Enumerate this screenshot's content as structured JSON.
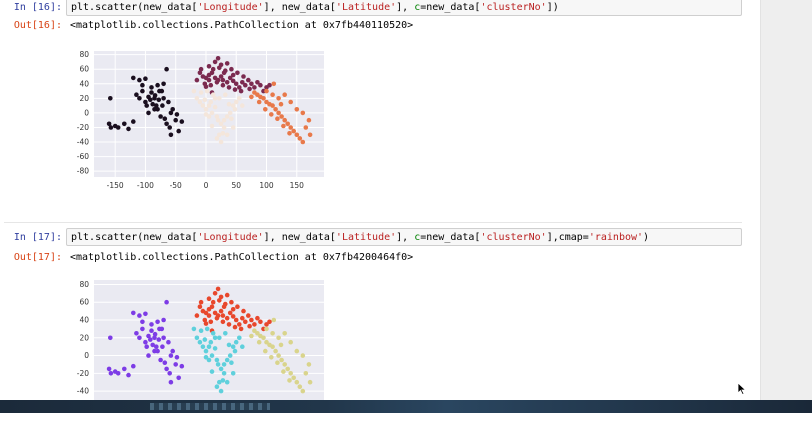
{
  "cells": [
    {
      "in_prompt": "In [16]:",
      "out_prompt": "Out[16]:",
      "code": {
        "p1": "plt.scatter(new_data[",
        "s1": "'Longitude'",
        "p2": "], new_data[",
        "s2": "'Latitude'",
        "p3": "], ",
        "kw": "c",
        "p4": "=new_data[",
        "s3": "'clusterNo'",
        "p5": "])"
      },
      "output_text": "<matplotlib.collections.PathCollection at 0x7fb440110520>"
    },
    {
      "in_prompt": "In [17]:",
      "out_prompt": "Out[17]:",
      "code": {
        "p1": "plt.scatter(new_data[",
        "s1": "'Longitude'",
        "p2": "], new_data[",
        "s2": "'Latitude'",
        "p3": "], ",
        "kw": "c",
        "p4": "=new_data[",
        "s3": "'clusterNo'",
        "p5": "],cmap=",
        "s4": "'rainbow'",
        "p6": ")"
      },
      "output_text": "<matplotlib.collections.PathCollection at 0x7fb4200464f0>"
    }
  ],
  "chart_data": [
    {
      "type": "scatter",
      "xlim": [
        -185,
        195
      ],
      "ylim": [
        -88,
        85
      ],
      "xticks": [
        -150,
        -100,
        -50,
        0,
        50,
        100,
        150
      ],
      "yticks": [
        80,
        60,
        40,
        20,
        0,
        -20,
        -40,
        -60,
        -80
      ],
      "grid": true,
      "background": "#eaeaf2",
      "colors": [
        "#1a0f1f",
        "#7b2a4f",
        "#f4e6db",
        "#e8794a"
      ]
    },
    {
      "type": "scatter",
      "xlim": [
        -185,
        195
      ],
      "ylim": [
        -50,
        85
      ],
      "xticks": [],
      "yticks": [
        80,
        60,
        40,
        20,
        0,
        -20,
        -40
      ],
      "grid": true,
      "background": "#eaeaf2",
      "cmap": "rainbow",
      "colors": [
        "#7d3ce6",
        "#e8472c",
        "#5fd0dc",
        "#d9d48c"
      ]
    }
  ],
  "clusters": [
    {
      "id": 0,
      "points": [
        [
          -160,
          -15
        ],
        [
          -157,
          -20
        ],
        [
          -150,
          -18
        ],
        [
          -145,
          -20
        ],
        [
          -135,
          -15
        ],
        [
          -128,
          -22
        ],
        [
          -120,
          -12
        ],
        [
          -115,
          25
        ],
        [
          -110,
          20
        ],
        [
          -105,
          30
        ],
        [
          -100,
          15
        ],
        [
          -98,
          10
        ],
        [
          -95,
          22
        ],
        [
          -92,
          18
        ],
        [
          -90,
          28
        ],
        [
          -88,
          12
        ],
        [
          -85,
          20
        ],
        [
          -84,
          24
        ],
        [
          -82,
          10
        ],
        [
          -80,
          5
        ],
        [
          -78,
          18
        ],
        [
          -77,
          30
        ],
        [
          -75,
          -5
        ],
        [
          -72,
          10
        ],
        [
          -70,
          20
        ],
        [
          -68,
          -8
        ],
        [
          -65,
          -15
        ],
        [
          -62,
          15
        ],
        [
          -60,
          -20
        ],
        [
          -58,
          0
        ],
        [
          -55,
          5
        ],
        [
          -50,
          -10
        ],
        [
          -48,
          -2
        ],
        [
          -45,
          -25
        ],
        [
          -100,
          47
        ],
        [
          -110,
          45
        ],
        [
          -105,
          38
        ],
        [
          -90,
          35
        ],
        [
          -70,
          40
        ],
        [
          -65,
          60
        ],
        [
          -73,
          30
        ],
        [
          -85,
          5
        ],
        [
          -58,
          -30
        ],
        [
          -40,
          -12
        ],
        [
          -158,
          20
        ],
        [
          -120,
          48
        ],
        [
          -80,
          38
        ],
        [
          -95,
          0
        ]
      ]
    },
    {
      "id": 1,
      "points": [
        [
          -5,
          50
        ],
        [
          0,
          48
        ],
        [
          5,
          52
        ],
        [
          10,
          55
        ],
        [
          15,
          48
        ],
        [
          20,
          45
        ],
        [
          25,
          50
        ],
        [
          30,
          55
        ],
        [
          35,
          42
        ],
        [
          40,
          48
        ],
        [
          45,
          52
        ],
        [
          50,
          40
        ],
        [
          55,
          35
        ],
        [
          60,
          42
        ],
        [
          65,
          38
        ],
        [
          70,
          45
        ],
        [
          75,
          40
        ],
        [
          80,
          35
        ],
        [
          85,
          42
        ],
        [
          90,
          38
        ],
        [
          95,
          30
        ],
        [
          100,
          35
        ],
        [
          105,
          38
        ],
        [
          -2,
          40
        ],
        [
          8,
          38
        ],
        [
          18,
          42
        ],
        [
          28,
          38
        ],
        [
          38,
          35
        ],
        [
          48,
          32
        ],
        [
          58,
          30
        ],
        [
          12,
          60
        ],
        [
          22,
          62
        ],
        [
          32,
          58
        ],
        [
          42,
          60
        ],
        [
          52,
          55
        ],
        [
          -10,
          55
        ],
        [
          -8,
          60
        ],
        [
          5,
          64
        ],
        [
          15,
          70
        ],
        [
          25,
          66
        ],
        [
          20,
          75
        ],
        [
          35,
          68
        ],
        [
          5,
          45
        ],
        [
          28,
          45
        ],
        [
          62,
          50
        ],
        [
          72,
          33
        ],
        [
          -15,
          45
        ],
        [
          0,
          36
        ],
        [
          45,
          44
        ],
        [
          10,
          28
        ]
      ]
    },
    {
      "id": 2,
      "points": [
        [
          -10,
          15
        ],
        [
          -5,
          10
        ],
        [
          0,
          5
        ],
        [
          5,
          -5
        ],
        [
          10,
          0
        ],
        [
          15,
          8
        ],
        [
          20,
          -10
        ],
        [
          25,
          -15
        ],
        [
          30,
          -20
        ],
        [
          35,
          -5
        ],
        [
          40,
          0
        ],
        [
          45,
          10
        ],
        [
          50,
          15
        ],
        [
          -15,
          20
        ],
        [
          -20,
          30
        ],
        [
          -8,
          28
        ],
        [
          2,
          30
        ],
        [
          12,
          25
        ],
        [
          22,
          20
        ],
        [
          32,
          25
        ],
        [
          28,
          -28
        ],
        [
          18,
          -35
        ],
        [
          22,
          -30
        ],
        [
          15,
          20
        ],
        [
          8,
          15
        ],
        [
          -2,
          18
        ],
        [
          38,
          12
        ],
        [
          42,
          -8
        ],
        [
          45,
          -20
        ],
        [
          35,
          -30
        ],
        [
          25,
          -40
        ],
        [
          30,
          -10
        ],
        [
          18,
          -5
        ],
        [
          5,
          10
        ],
        [
          10,
          -18
        ],
        [
          0,
          -2
        ],
        [
          48,
          5
        ],
        [
          55,
          20
        ],
        [
          60,
          10
        ]
      ]
    },
    {
      "id": 3,
      "points": [
        [
          80,
          28
        ],
        [
          85,
          25
        ],
        [
          90,
          22
        ],
        [
          95,
          20
        ],
        [
          100,
          15
        ],
        [
          105,
          12
        ],
        [
          110,
          10
        ],
        [
          115,
          5
        ],
        [
          120,
          0
        ],
        [
          125,
          -5
        ],
        [
          130,
          -10
        ],
        [
          135,
          -15
        ],
        [
          140,
          -20
        ],
        [
          145,
          -25
        ],
        [
          150,
          -30
        ],
        [
          155,
          -35
        ],
        [
          160,
          -40
        ],
        [
          100,
          30
        ],
        [
          110,
          25
        ],
        [
          120,
          20
        ],
        [
          130,
          25
        ],
        [
          140,
          15
        ],
        [
          150,
          5
        ],
        [
          160,
          0
        ],
        [
          170,
          -10
        ],
        [
          75,
          22
        ],
        [
          88,
          15
        ],
        [
          98,
          5
        ],
        [
          108,
          -2
        ],
        [
          118,
          -8
        ],
        [
          128,
          -18
        ],
        [
          138,
          -28
        ],
        [
          165,
          -20
        ],
        [
          112,
          40
        ],
        [
          124,
          12
        ],
        [
          172,
          -30
        ]
      ]
    }
  ]
}
